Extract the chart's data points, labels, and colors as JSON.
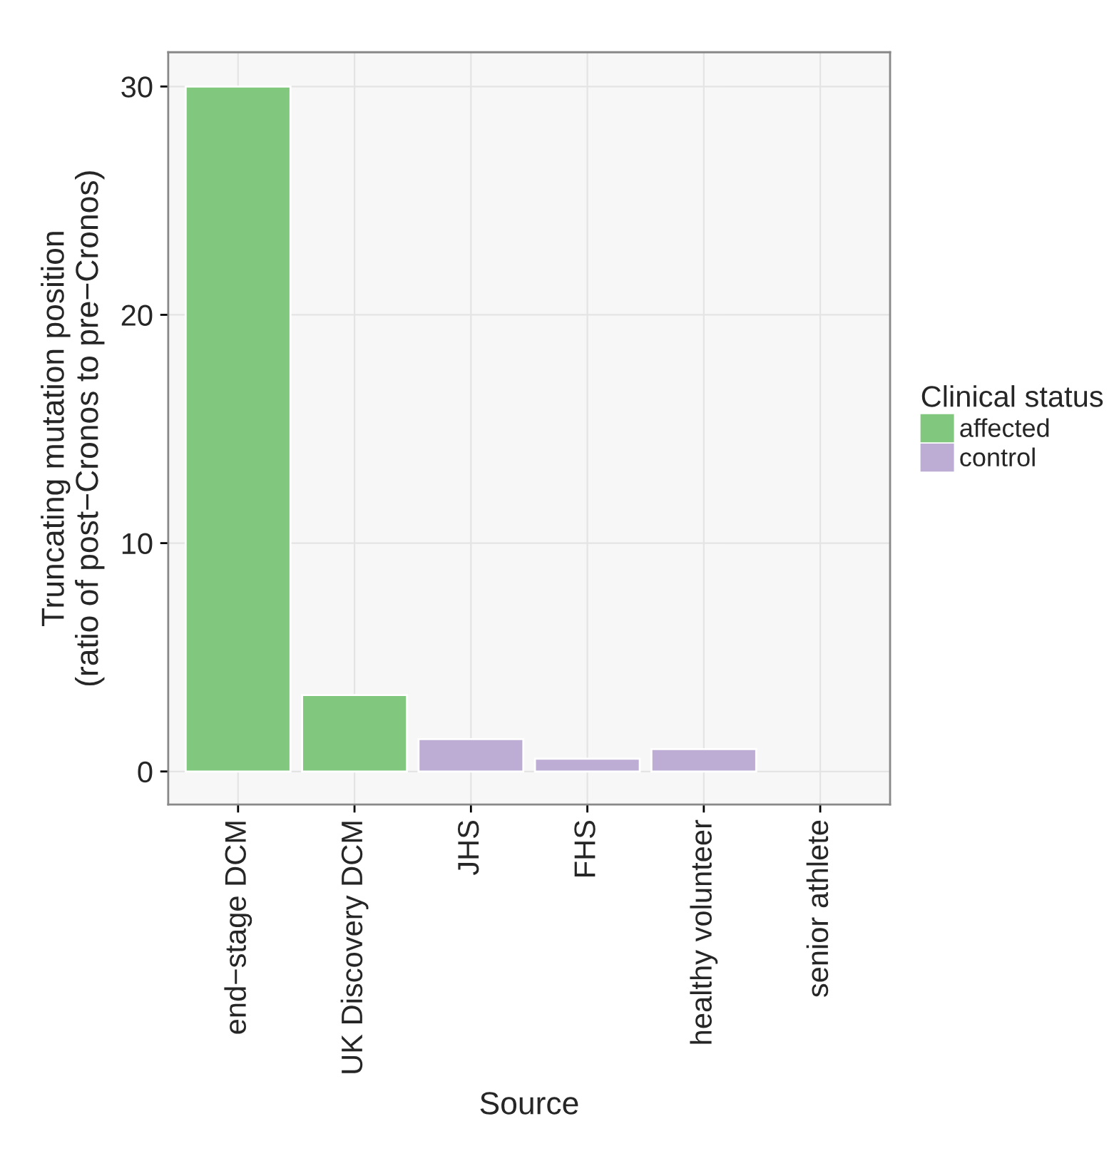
{
  "chart_data": {
    "type": "bar",
    "xlabel": "Source",
    "ylabel": "Truncating mutation position\n(ratio of post−Cronos to pre−Cronos)",
    "legend_title": "Clinical status",
    "categories": [
      "end−stage DCM",
      "UK Discovery DCM",
      "JHS",
      "FHS",
      "healthy volunteer",
      "senior athlete"
    ],
    "series": [
      {
        "name": "affected",
        "color": "#81c77e",
        "values": [
          30,
          3.35,
          null,
          null,
          null,
          null
        ]
      },
      {
        "name": "control",
        "color": "#bdadd4",
        "values": [
          null,
          null,
          1.42,
          0.56,
          0.98,
          null
        ]
      }
    ],
    "ylim": [
      -1.45,
      31.5
    ],
    "yticks": [
      0,
      10,
      20,
      30
    ],
    "grid": true,
    "legend": "right"
  }
}
